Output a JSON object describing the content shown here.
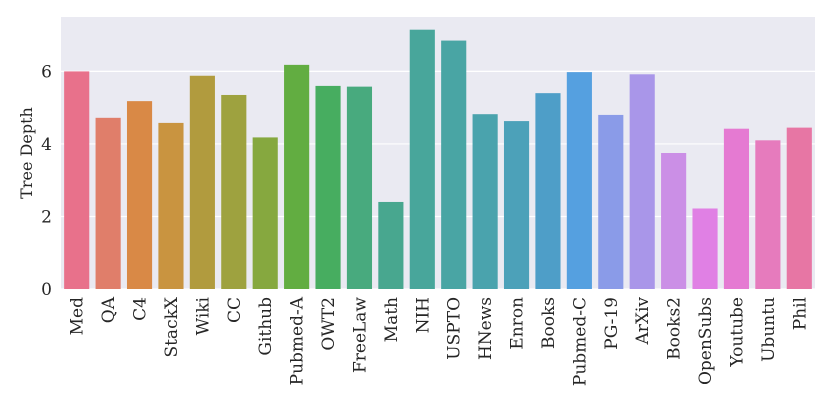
{
  "chart_data": {
    "type": "bar",
    "title": "",
    "xlabel": "",
    "ylabel": "Tree Depth",
    "ylim": [
      0,
      7.5
    ],
    "yticks": [
      0,
      2,
      4,
      6
    ],
    "grid": "horizontal",
    "background": "#eaeaf2",
    "categories": [
      "Med",
      "QA",
      "C4",
      "StackX",
      "Wiki",
      "CC",
      "Github",
      "Pubmed-A",
      "OWT2",
      "FreeLaw",
      "Math",
      "NIH",
      "USPTO",
      "HNews",
      "Enron",
      "Books",
      "Pubmed-C",
      "PG-19",
      "ArXiv",
      "Books2",
      "OpenSubs",
      "Youtube",
      "Ubuntu",
      "Phil"
    ],
    "values": [
      6.0,
      4.72,
      5.18,
      4.58,
      5.88,
      5.35,
      4.18,
      6.18,
      5.6,
      5.58,
      2.4,
      7.15,
      6.85,
      4.82,
      4.63,
      5.4,
      5.98,
      4.8,
      5.92,
      3.75,
      2.22,
      4.42,
      4.1,
      4.45
    ],
    "colors": [
      "#e8718b",
      "#e07e6a",
      "#d98946",
      "#c99440",
      "#b19b3e",
      "#9ea23f",
      "#86a83f",
      "#62ad41",
      "#47ad60",
      "#48aa7e",
      "#48a78f",
      "#48a69b",
      "#49a5a4",
      "#4aa3ad",
      "#4ca1b9",
      "#4e9ec8",
      "#55a0e0",
      "#8a9be8",
      "#a996e9",
      "#cb8fe6",
      "#e080e4",
      "#e57ad2",
      "#e67bbd",
      "#e776a4"
    ]
  }
}
